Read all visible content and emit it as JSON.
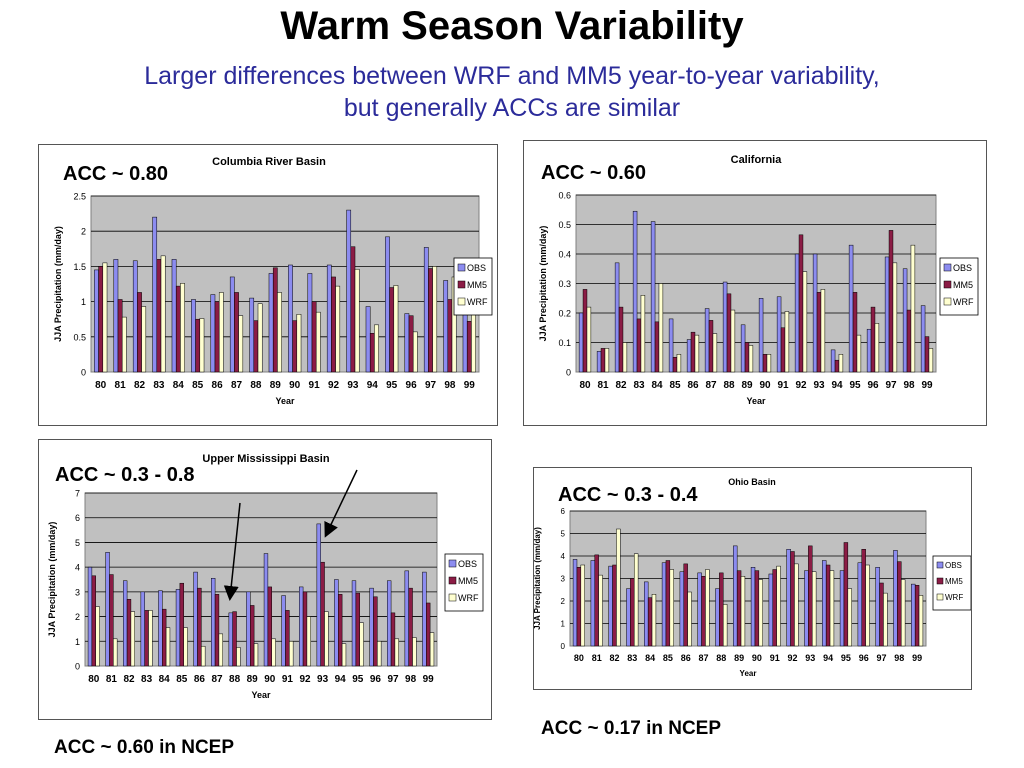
{
  "slide": {
    "title": "Warm Season Variability",
    "subtitle_line1": "Larger differences between WRF and MM5 year-to-year variability,",
    "subtitle_line2": "but generally ACCs are similar",
    "note_left": "ACC ~ 0.60 in NCEP",
    "note_right": "ACC ~ 0.17 in NCEP"
  },
  "colors": {
    "OBS": "#8c8cf0",
    "MM5": "#8b1c45",
    "WRF": "#ffffd0",
    "plot_bg": "#c0c0c0"
  },
  "chart_data": [
    {
      "type": "bar",
      "title": "Columbia River Basin",
      "acc_label": "ACC ~ 0.80",
      "xlabel": "Year",
      "ylabel": "JJA Precipitation (mm/day)",
      "ylim": [
        0,
        2.5
      ],
      "yticks": [
        "0",
        "0.5",
        "1",
        "1.5",
        "2",
        "2.5"
      ],
      "ytick_values": [
        0,
        0.5,
        1,
        1.5,
        2,
        2.5
      ],
      "legend": "right",
      "grid": true,
      "categories": [
        "80",
        "81",
        "82",
        "83",
        "84",
        "85",
        "86",
        "87",
        "88",
        "89",
        "90",
        "91",
        "92",
        "93",
        "94",
        "95",
        "96",
        "97",
        "98",
        "99"
      ],
      "series": [
        {
          "name": "OBS",
          "values": [
            1.45,
            1.6,
            1.58,
            2.2,
            1.6,
            1.03,
            1.1,
            1.35,
            1.05,
            1.4,
            1.52,
            1.4,
            1.52,
            2.3,
            0.93,
            1.92,
            0.83,
            1.77,
            1.3,
            1.35
          ]
        },
        {
          "name": "MM5",
          "values": [
            1.5,
            1.03,
            1.13,
            1.6,
            1.22,
            0.75,
            1.0,
            1.13,
            0.73,
            1.48,
            0.73,
            1.0,
            1.35,
            1.78,
            0.55,
            1.2,
            0.8,
            1.47,
            1.03,
            0.72
          ]
        },
        {
          "name": "WRF",
          "values": [
            1.55,
            0.78,
            0.93,
            1.65,
            1.26,
            0.76,
            1.13,
            0.8,
            0.97,
            1.13,
            0.82,
            0.85,
            1.22,
            1.46,
            0.67,
            1.23,
            0.57,
            1.5,
            1.35,
            0.83
          ]
        }
      ]
    },
    {
      "type": "bar",
      "title": "California",
      "acc_label": "ACC ~ 0.60",
      "xlabel": "Year",
      "ylabel": "JJA Precipitation (mm/day)",
      "ylim": [
        0,
        0.6
      ],
      "yticks": [
        "0",
        "0.1",
        "0.2",
        "0.3",
        "0.4",
        "0.5",
        "0.6"
      ],
      "ytick_values": [
        0,
        0.1,
        0.2,
        0.3,
        0.4,
        0.5,
        0.6
      ],
      "legend": "right",
      "grid": true,
      "categories": [
        "80",
        "81",
        "82",
        "83",
        "84",
        "85",
        "86",
        "87",
        "88",
        "89",
        "90",
        "91",
        "92",
        "93",
        "94",
        "95",
        "96",
        "97",
        "98",
        "99"
      ],
      "series": [
        {
          "name": "OBS",
          "values": [
            0.2,
            0.07,
            0.37,
            0.545,
            0.51,
            0.18,
            0.11,
            0.215,
            0.305,
            0.16,
            0.25,
            0.255,
            0.4,
            0.4,
            0.075,
            0.43,
            0.145,
            0.39,
            0.35,
            0.225
          ]
        },
        {
          "name": "MM5",
          "values": [
            0.28,
            0.08,
            0.22,
            0.18,
            0.17,
            0.05,
            0.135,
            0.175,
            0.265,
            0.1,
            0.06,
            0.15,
            0.465,
            0.27,
            0.04,
            0.27,
            0.22,
            0.48,
            0.21,
            0.12
          ]
        },
        {
          "name": "WRF",
          "values": [
            0.22,
            0.08,
            0.1,
            0.26,
            0.3,
            0.06,
            0.125,
            0.13,
            0.21,
            0.09,
            0.06,
            0.205,
            0.34,
            0.28,
            0.06,
            0.125,
            0.165,
            0.37,
            0.43,
            0.08
          ]
        }
      ]
    },
    {
      "type": "bar",
      "title": "Upper Mississippi Basin",
      "acc_label": "ACC ~ 0.3 - 0.8",
      "xlabel": "Year",
      "ylabel": "JJA Precipitation (mm/day)",
      "ylim": [
        0,
        7
      ],
      "yticks": [
        "0",
        "1",
        "2",
        "3",
        "4",
        "5",
        "6",
        "7"
      ],
      "ytick_values": [
        0,
        1,
        2,
        3,
        4,
        5,
        6,
        7
      ],
      "legend": "right",
      "grid": true,
      "categories": [
        "80",
        "81",
        "82",
        "83",
        "84",
        "85",
        "86",
        "87",
        "88",
        "89",
        "90",
        "91",
        "92",
        "93",
        "94",
        "95",
        "96",
        "97",
        "98",
        "99"
      ],
      "series": [
        {
          "name": "OBS",
          "values": [
            4.0,
            4.6,
            3.45,
            3.0,
            3.05,
            3.1,
            3.8,
            3.55,
            2.15,
            3.0,
            4.55,
            2.85,
            3.2,
            5.75,
            3.5,
            3.45,
            3.15,
            3.45,
            3.85,
            3.8
          ]
        },
        {
          "name": "MM5",
          "values": [
            3.65,
            3.7,
            2.7,
            2.25,
            2.3,
            3.35,
            3.15,
            2.9,
            2.2,
            2.45,
            3.2,
            2.25,
            3.0,
            4.2,
            2.9,
            2.95,
            2.8,
            2.15,
            3.15,
            2.55
          ]
        },
        {
          "name": "WRF",
          "values": [
            2.4,
            1.1,
            2.2,
            2.25,
            1.55,
            1.55,
            0.8,
            1.3,
            0.75,
            0.9,
            1.1,
            1.0,
            2.0,
            2.2,
            0.9,
            1.75,
            1.0,
            1.1,
            1.15,
            1.35
          ]
        }
      ]
    },
    {
      "type": "bar",
      "title": "Ohio Basin",
      "acc_label": "ACC ~ 0.3 - 0.4",
      "xlabel": "Year",
      "ylabel": "JJA Precipitation (mm/day)",
      "ylim": [
        0,
        6
      ],
      "yticks": [
        "0",
        "1",
        "2",
        "3",
        "4",
        "5",
        "6"
      ],
      "ytick_values": [
        0,
        1,
        2,
        3,
        4,
        5,
        6
      ],
      "legend": "right",
      "grid": true,
      "categories": [
        "80",
        "81",
        "82",
        "83",
        "84",
        "85",
        "86",
        "87",
        "88",
        "89",
        "90",
        "91",
        "92",
        "93",
        "94",
        "95",
        "96",
        "97",
        "98",
        "99"
      ],
      "series": [
        {
          "name": "OBS",
          "values": [
            3.85,
            3.8,
            3.55,
            2.55,
            2.85,
            3.7,
            3.3,
            3.25,
            2.55,
            4.45,
            3.5,
            3.2,
            4.3,
            3.35,
            3.8,
            3.35,
            3.7,
            3.5,
            4.25,
            2.75
          ]
        },
        {
          "name": "MM5",
          "values": [
            3.5,
            4.05,
            3.6,
            3.0,
            2.15,
            3.8,
            3.65,
            3.1,
            3.25,
            3.35,
            3.35,
            3.4,
            4.2,
            4.45,
            3.6,
            4.6,
            4.3,
            2.8,
            3.75,
            2.7
          ]
        },
        {
          "name": "WRF",
          "values": [
            3.6,
            3.15,
            5.2,
            4.1,
            2.3,
            3.4,
            2.4,
            3.4,
            1.85,
            3.1,
            2.95,
            3.55,
            3.65,
            3.3,
            3.35,
            2.55,
            3.6,
            2.35,
            2.95,
            2.25
          ]
        }
      ]
    }
  ]
}
